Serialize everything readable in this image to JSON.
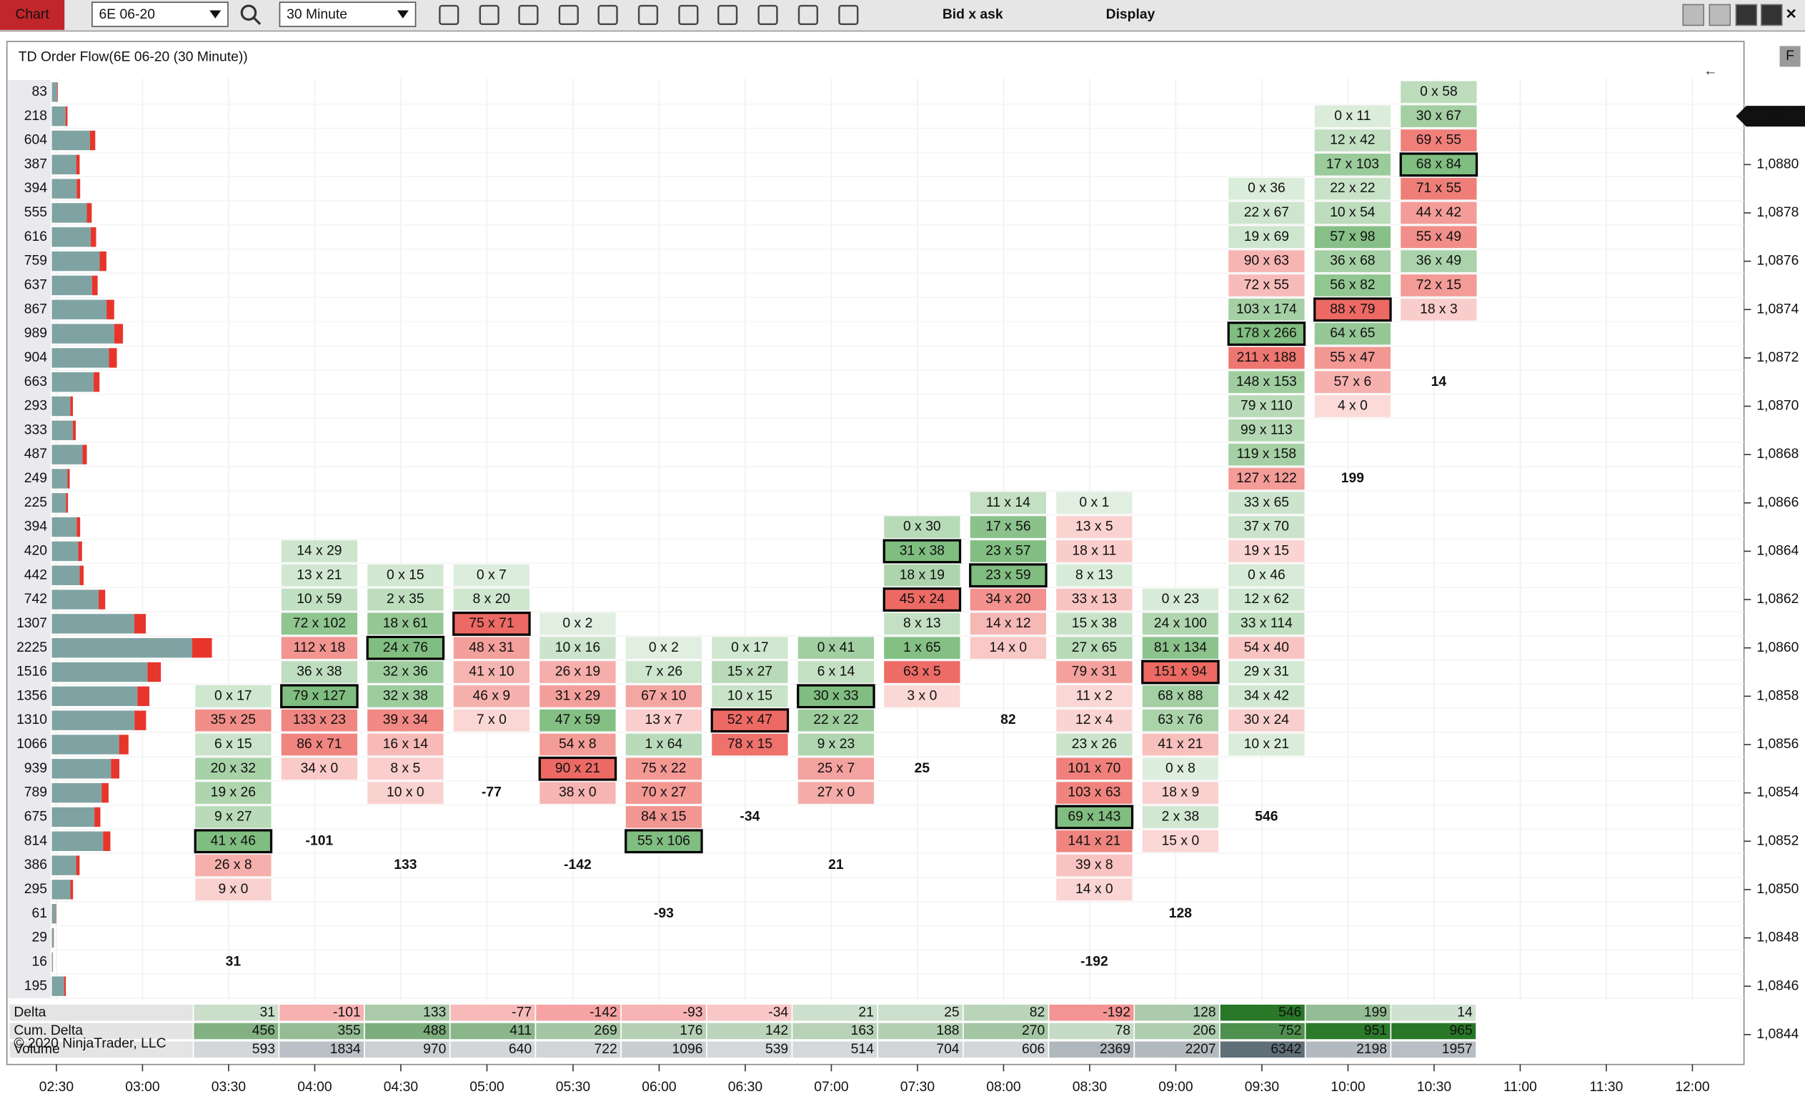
{
  "toolbar": {
    "tab": "Chart",
    "instrument": "6E 06-20",
    "interval": "30 Minute",
    "bid_ask": "Bid x ask",
    "display": "Display"
  },
  "chart": {
    "title": "TD Order Flow(6E 06-20 (30 Minute))",
    "arrow": "←",
    "current_price": {
      "value": 1.0882,
      "label": "1,0882"
    },
    "copyright": "© 2020 NinjaTrader, LLC"
  },
  "price_axis": [
    {
      "value": 1.088,
      "label": "1,0880"
    },
    {
      "value": 1.0878,
      "label": "1,0878"
    },
    {
      "value": 1.0876,
      "label": "1,0876"
    },
    {
      "value": 1.0874,
      "label": "1,0874"
    },
    {
      "value": 1.0872,
      "label": "1,0872"
    },
    {
      "value": 1.087,
      "label": "1,0870"
    },
    {
      "value": 1.0868,
      "label": "1,0868"
    },
    {
      "value": 1.0866,
      "label": "1,0866"
    },
    {
      "value": 1.0864,
      "label": "1,0864"
    },
    {
      "value": 1.0862,
      "label": "1,0862"
    },
    {
      "value": 1.086,
      "label": "1,0860"
    },
    {
      "value": 1.0858,
      "label": "1,0858"
    },
    {
      "value": 1.0856,
      "label": "1,0856"
    },
    {
      "value": 1.0854,
      "label": "1,0854"
    },
    {
      "value": 1.0852,
      "label": "1,0852"
    },
    {
      "value": 1.085,
      "label": "1,0850"
    },
    {
      "value": 1.0848,
      "label": "1,0848"
    },
    {
      "value": 1.0846,
      "label": "1,0846"
    },
    {
      "value": 1.0844,
      "label": "1,0844"
    }
  ],
  "time_axis": [
    "02:30",
    "03:00",
    "03:30",
    "04:00",
    "04:30",
    "05:00",
    "05:30",
    "06:00",
    "06:30",
    "07:00",
    "07:30",
    "08:00",
    "08:30",
    "09:00",
    "09:30",
    "10:00",
    "10:30",
    "11:00",
    "11:30",
    "12:00"
  ],
  "profile": {
    "high": 1.0883,
    "values": [
      83,
      218,
      604,
      387,
      394,
      555,
      616,
      759,
      637,
      867,
      989,
      904,
      663,
      293,
      333,
      487,
      249,
      225,
      394,
      420,
      442,
      742,
      1307,
      2225,
      1516,
      1356,
      1310,
      1066,
      939,
      789,
      675,
      814,
      386,
      295,
      61,
      29,
      16,
      195
    ]
  },
  "summary_labels": [
    "Delta",
    "Cum. Delta",
    "Volume"
  ],
  "columns": [
    {
      "high": 1.0858,
      "cells": [
        "0 x 17",
        "35 x 25",
        "6 x 15",
        "20 x 32",
        "19 x 26",
        "9 x 27",
        "41 x 46",
        "26 x 8",
        "9 x 0"
      ],
      "delta": 31,
      "cum_delta": 456,
      "volume": 593
    },
    {
      "high": 1.0864,
      "cells": [
        "14 x 29",
        "13 x 21",
        "10 x 59",
        "72 x 102",
        "112 x 18",
        "36 x 38",
        "79 x 127",
        "133 x 23",
        "86 x 71",
        "34 x 0"
      ],
      "delta": -101,
      "cum_delta": 355,
      "volume": 1834
    },
    {
      "high": 1.0863,
      "cells": [
        "0 x 15",
        "2 x 35",
        "18 x 61",
        "24 x 76",
        "32 x 36",
        "32 x 38",
        "39 x 34",
        "16 x 14",
        "8 x 5",
        "10 x 0"
      ],
      "delta": 133,
      "cum_delta": 488,
      "volume": 970
    },
    {
      "high": 1.0863,
      "cells": [
        "0 x 7",
        "8 x 20",
        "75 x 71",
        "48 x 31",
        "41 x 10",
        "46 x 9",
        "7 x 0"
      ],
      "delta": -77,
      "cum_delta": 411,
      "volume": 640
    },
    {
      "high": 1.0861,
      "cells": [
        "0 x 2",
        "10 x 16",
        "26 x 19",
        "31 x 29",
        "47 x 59",
        "54 x 8",
        "90 x 21",
        "38 x 0"
      ],
      "delta": -142,
      "cum_delta": 269,
      "volume": 722
    },
    {
      "high": 1.086,
      "cells": [
        "0 x 2",
        "7 x 26",
        "67 x 10",
        "13 x 7",
        "1 x 64",
        "75 x 22",
        "70 x 27",
        "84 x 15",
        "55 x 106"
      ],
      "delta": -93,
      "cum_delta": 176,
      "volume": 1096
    },
    {
      "high": 1.086,
      "cells": [
        "0 x 17",
        "15 x 27",
        "10 x 15",
        "52 x 47",
        "78 x 15"
      ],
      "delta": -34,
      "cum_delta": 142,
      "volume": 539
    },
    {
      "high": 1.086,
      "cells": [
        "0 x 41",
        "6 x 14",
        "30 x 33",
        "22 x 22",
        "9 x 23",
        "25 x 7",
        "27 x 0"
      ],
      "delta": 21,
      "cum_delta": 163,
      "volume": 514
    },
    {
      "high": 1.0865,
      "cells": [
        "0 x 30",
        "31 x 38",
        "18 x 19",
        "45 x 24",
        "8 x 13",
        "1 x 65",
        "63 x 5",
        "3 x 0"
      ],
      "delta": 25,
      "cum_delta": 188,
      "volume": 704
    },
    {
      "high": 1.0866,
      "cells": [
        "11 x 14",
        "17 x 56",
        "23 x 57",
        "23 x 59",
        "34 x 20",
        "14 x 12",
        "14 x 0"
      ],
      "delta": 82,
      "cum_delta": 270,
      "volume": 606
    },
    {
      "high": 1.0866,
      "cells": [
        "0 x 1",
        "13 x 5",
        "18 x 11",
        "8 x 13",
        "33 x 13",
        "15 x 38",
        "27 x 65",
        "79 x 31",
        "11 x 2",
        "12 x 4",
        "23 x 26",
        "101 x 70",
        "103 x 63",
        "69 x 143",
        "141 x 21",
        "39 x 8",
        "14 x 0"
      ],
      "delta": -192,
      "cum_delta": 78,
      "volume": 2369
    },
    {
      "high": 1.0862,
      "cells": [
        "0 x 23",
        "24 x 100",
        "81 x 134",
        "151 x 94",
        "68 x 88",
        "63 x 76",
        "41 x 21",
        "0 x 8",
        "18 x 9",
        "2 x 38",
        "15 x 0"
      ],
      "delta": 128,
      "cum_delta": 206,
      "volume": 2207
    },
    {
      "high": 1.0879,
      "cells": [
        "0 x 36",
        "22 x 67",
        "19 x 69",
        "90 x 63",
        "72 x 55",
        "103 x 174",
        "178 x 266",
        "211 x 188",
        "148 x 153",
        "79 x 110",
        "99 x 113",
        "119 x 158",
        "127 x 122",
        "33 x 65",
        "37 x 70",
        "19 x 15",
        "0 x 46",
        "12 x 62",
        "33 x 114",
        "54 x 40",
        "29 x 31",
        "34 x 42",
        "30 x 24",
        "10 x 21"
      ],
      "delta": 546,
      "cum_delta": 752,
      "volume": 6342
    },
    {
      "high": 1.0882,
      "cells": [
        "0 x 11",
        "12 x 42",
        "17 x 103",
        "22 x 22",
        "10 x 54",
        "57 x 98",
        "36 x 68",
        "56 x 82",
        "88 x 79",
        "64 x 65",
        "55 x 47",
        "57 x 6",
        "4 x 0"
      ],
      "delta": 199,
      "cum_delta": 951,
      "volume": 2198
    },
    {
      "high": 1.0883,
      "cells": [
        "0 x 58",
        "30 x 67",
        "69 x 55",
        "68 x 84",
        "71 x 55",
        "44 x 42",
        "55 x 49",
        "36 x 49",
        "72 x 15",
        "18 x 3"
      ],
      "delta": 14,
      "cum_delta": 965,
      "volume": 1957
    }
  ]
}
